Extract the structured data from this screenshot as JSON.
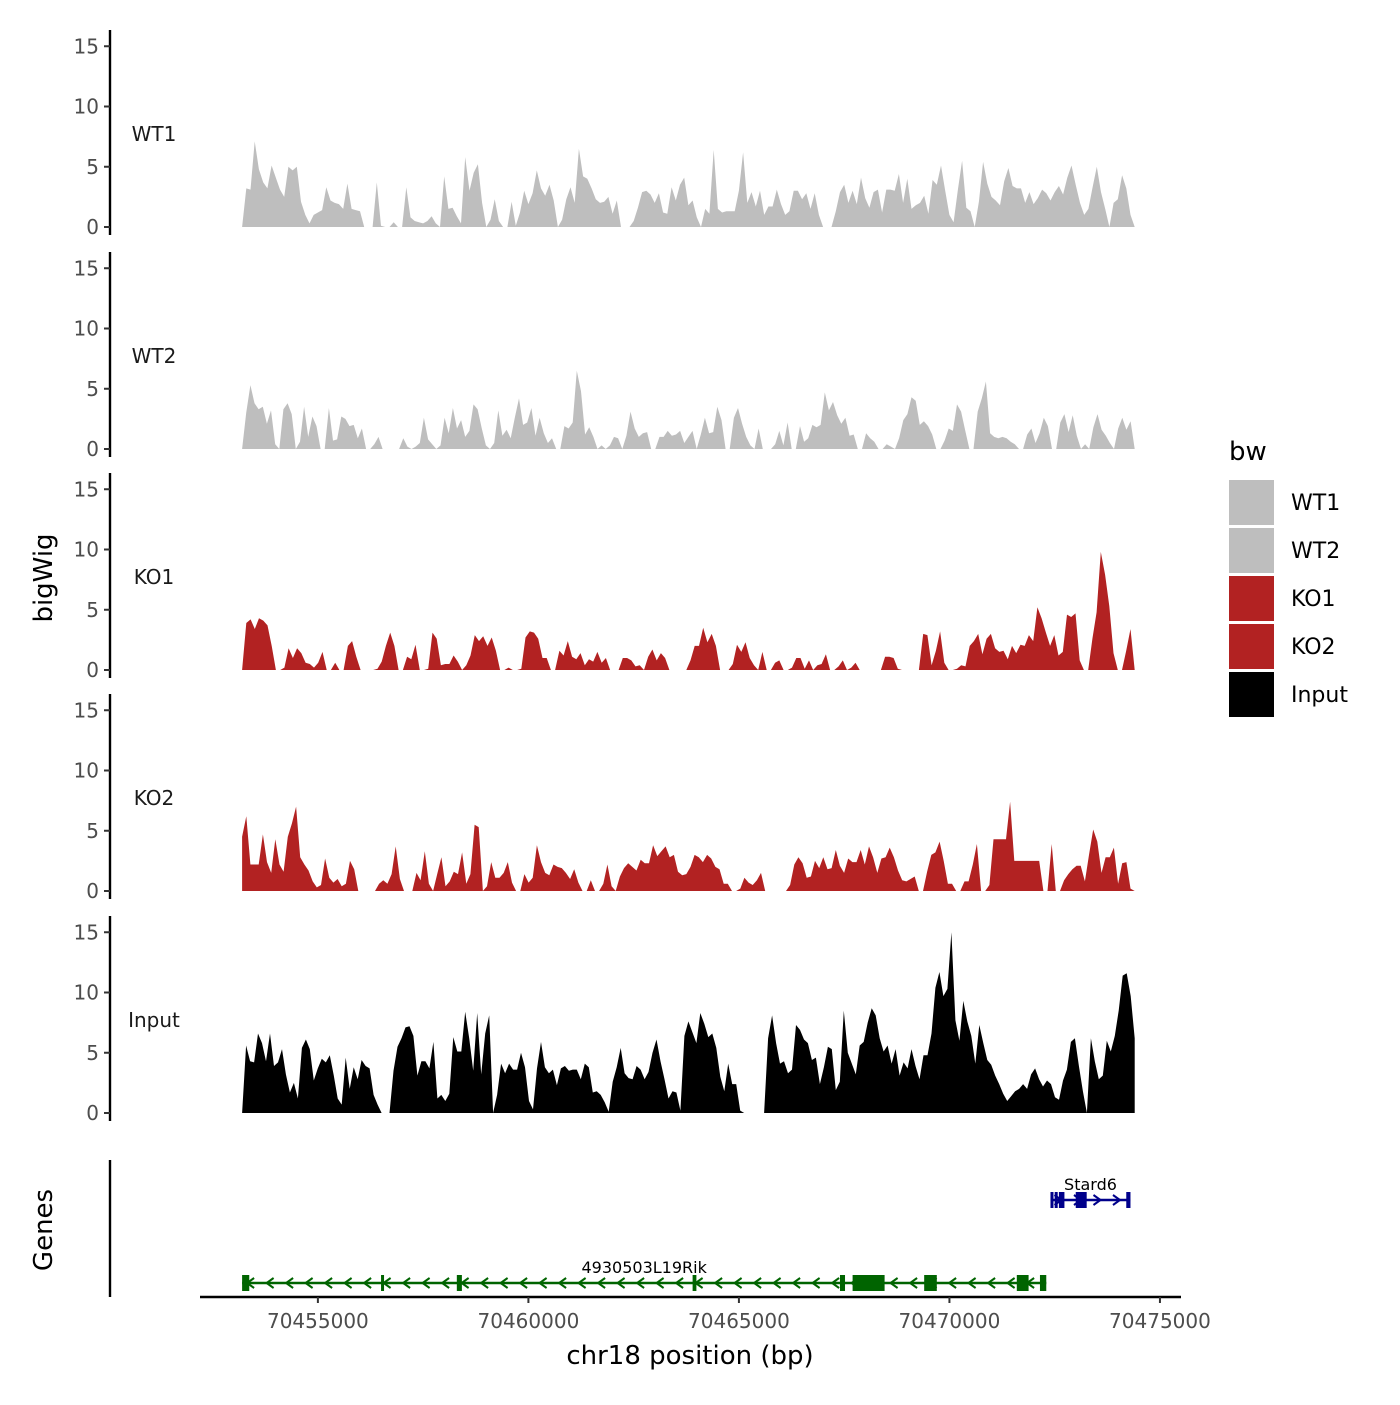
{
  "chart_data": {
    "type": "area",
    "chromosome": "chr18",
    "x_range": [
      70453200,
      70474400
    ],
    "xlim": [
      70452200,
      70475500
    ],
    "x_ticks": [
      70455000,
      70460000,
      70465000,
      70470000,
      70475000
    ],
    "x_tick_labels": [
      "70455000",
      "70460000",
      "70465000",
      "70470000",
      "70475000"
    ],
    "xlabel": "chr18 position (bp)",
    "ylabel": "bigWig",
    "genes_ylabel": "Genes",
    "y_ticks": [
      0,
      5,
      10,
      15
    ],
    "ylim": [
      0,
      16
    ],
    "legend_title": "bw",
    "series": [
      {
        "name": "WT1",
        "color": "#bebebe",
        "values": [
          0.0,
          3.2,
          3.1,
          7.1,
          4.8,
          3.7,
          3.2,
          5.1,
          4.1,
          3.1,
          2.5,
          5.0,
          4.7,
          5.0,
          2.1,
          1.0,
          0.3,
          1.0,
          1.2,
          1.4,
          3.3,
          2.2,
          2.0,
          1.9,
          1.5,
          3.6,
          1.5,
          1.4,
          1.3,
          0.0,
          0.0,
          0.0,
          3.7,
          0.1,
          0.0,
          0.0,
          0.4,
          0.0,
          0.0,
          3.3,
          0.8,
          0.5,
          0.4,
          0.3,
          0.5,
          0.9,
          0.3,
          0.0,
          4.2,
          1.5,
          1.6,
          0.9,
          0.3,
          5.8,
          3.0,
          4.5,
          5.2,
          2.0,
          0.0,
          0.6,
          2.3,
          0.5,
          0.0,
          0.0,
          2.1,
          0.1,
          1.2,
          3.0,
          1.9,
          2.8,
          4.7,
          3.2,
          2.6,
          3.5,
          2.2,
          0.0,
          0.6,
          2.3,
          3.3,
          2.0,
          6.5,
          4.2,
          4.0,
          3.2,
          2.3,
          2.0,
          2.1,
          2.5,
          1.1,
          2.2,
          0.0,
          0.0,
          0.0,
          0.5,
          1.6,
          2.9,
          3.0,
          2.7,
          2.0,
          2.8,
          1.2,
          1.1,
          3.3,
          2.2,
          3.5,
          4.1,
          1.8,
          2.2,
          0.8,
          0.0,
          1.5,
          1.1,
          6.4,
          1.5,
          1.2,
          1.3,
          1.3,
          1.3,
          3.0,
          6.2,
          2.0,
          2.9,
          1.7,
          3.0,
          1.0,
          1.7,
          1.7,
          3.1,
          1.9,
          1.0,
          1.3,
          3.0,
          3.0,
          2.3,
          2.8,
          1.5,
          2.8,
          1.0,
          0.0,
          0.0,
          0.0,
          1.3,
          2.9,
          3.5,
          2.0,
          3.0,
          1.9,
          4.1,
          2.4,
          1.6,
          2.9,
          3.1,
          1.2,
          3.1,
          3.1,
          3.0,
          4.4,
          2.0,
          4.0,
          1.5,
          1.8,
          2.0,
          2.6,
          1.1,
          3.9,
          3.5,
          5.1,
          3.0,
          1.0,
          0.4,
          3.1,
          5.5,
          1.6,
          1.3,
          0.0,
          2.1,
          5.4,
          3.6,
          2.5,
          2.2,
          1.8,
          3.8,
          4.9,
          3.4,
          3.2,
          3.2,
          2.0,
          2.9,
          1.9,
          2.4,
          3.1,
          2.8,
          2.2,
          2.9,
          3.4,
          2.7,
          4.1,
          5.1,
          3.5,
          2.0,
          1.0,
          1.5,
          3.3,
          5.0,
          2.9,
          1.5,
          0.0,
          2.0,
          2.3,
          4.3,
          3.2,
          1.0,
          0.0
        ]
      },
      {
        "name": "WT2",
        "color": "#bebebe",
        "values": [
          0.0,
          3.0,
          5.3,
          3.8,
          3.3,
          3.5,
          2.1,
          3.2,
          0.4,
          0.0,
          3.3,
          3.8,
          2.9,
          0.0,
          0.6,
          3.5,
          1.0,
          2.7,
          1.9,
          0.0,
          0.0,
          3.4,
          0.7,
          0.8,
          2.7,
          2.5,
          1.9,
          2.0,
          0.9,
          1.7,
          0.0,
          0.0,
          0.4,
          1.0,
          0.0,
          0.0,
          0.0,
          0.0,
          0.0,
          0.9,
          0.2,
          0.0,
          0.2,
          0.5,
          2.6,
          0.8,
          0.4,
          0.0,
          0.3,
          2.6,
          1.3,
          3.4,
          1.7,
          2.4,
          1.0,
          1.5,
          3.7,
          3.3,
          1.7,
          0.3,
          0.0,
          0.5,
          3.2,
          1.1,
          1.6,
          0.9,
          2.6,
          4.2,
          2.0,
          2.2,
          3.4,
          1.1,
          2.6,
          1.3,
          0.5,
          0.9,
          0.0,
          0.0,
          1.9,
          1.7,
          2.2,
          6.5,
          4.8,
          1.2,
          1.8,
          1.0,
          0.0,
          0.3,
          0.0,
          0.3,
          1.0,
          0.9,
          0.0,
          1.1,
          3.1,
          1.7,
          1.0,
          1.3,
          1.4,
          0.0,
          0.0,
          1.0,
          1.0,
          1.5,
          1.1,
          1.2,
          1.5,
          0.5,
          1.0,
          1.5,
          0.0,
          1.2,
          2.6,
          1.3,
          1.4,
          3.5,
          2.4,
          0.0,
          0.0,
          2.6,
          3.4,
          2.1,
          1.0,
          0.3,
          0.0,
          1.7,
          0.0,
          0.0,
          0.0,
          0.4,
          1.5,
          0.3,
          2.2,
          0.0,
          0.0,
          1.9,
          0.6,
          0.9,
          2.0,
          1.8,
          2.0,
          4.7,
          3.2,
          3.9,
          2.8,
          2.1,
          2.6,
          1.1,
          1.2,
          0.0,
          0.0,
          1.3,
          0.9,
          0.6,
          0.0,
          0.0,
          0.4,
          0.2,
          0.0,
          0.9,
          2.4,
          2.9,
          4.3,
          4.0,
          2.0,
          2.3,
          1.9,
          1.2,
          0.0,
          0.0,
          0.7,
          1.7,
          1.5,
          3.7,
          3.1,
          1.5,
          0.0,
          0.0,
          3.1,
          4.2,
          5.6,
          1.3,
          1.0,
          0.9,
          1.0,
          0.9,
          0.6,
          0.4,
          0.0,
          0.0,
          1.2,
          1.7,
          0.5,
          1.3,
          2.6,
          1.9,
          0.0,
          0.0,
          2.2,
          2.9,
          1.4,
          2.8,
          1.1,
          0.0,
          0.4,
          0.0,
          1.8,
          2.9,
          1.6,
          1.1,
          0.5,
          0.0,
          1.7,
          2.6,
          1.6,
          2.3,
          0.0
        ]
      },
      {
        "name": "KO1",
        "color": "#b22222",
        "values": [
          0.0,
          3.9,
          4.2,
          3.4,
          4.3,
          4.1,
          3.7,
          2.0,
          0.0,
          0.0,
          0.2,
          1.8,
          1.0,
          1.8,
          1.4,
          0.6,
          0.5,
          0.2,
          0.6,
          1.5,
          0.0,
          0.0,
          0.6,
          0.0,
          0.0,
          2.0,
          2.4,
          1.1,
          0.0,
          0.0,
          0.0,
          0.0,
          0.1,
          0.7,
          2.0,
          3.1,
          2.0,
          0.0,
          0.0,
          1.1,
          0.9,
          2.1,
          0.0,
          0.0,
          0.1,
          3.1,
          2.6,
          0.4,
          0.5,
          0.5,
          1.2,
          0.7,
          0.0,
          0.4,
          1.2,
          2.9,
          2.4,
          2.8,
          2.0,
          2.7,
          1.6,
          0.0,
          0.0,
          0.2,
          0.0,
          0.0,
          0.1,
          2.7,
          3.2,
          3.1,
          2.6,
          1.0,
          1.0,
          0.0,
          0.0,
          1.6,
          1.2,
          2.4,
          1.1,
          0.9,
          1.4,
          0.4,
          0.9,
          0.7,
          1.5,
          0.6,
          1.0,
          0.0,
          0.0,
          0.0,
          1.0,
          1.0,
          0.8,
          0.3,
          0.4,
          0.0,
          1.1,
          1.7,
          0.8,
          1.4,
          1.0,
          0.0,
          0.0,
          0.0,
          0.0,
          0.0,
          0.8,
          2.0,
          2.0,
          3.5,
          2.3,
          3.0,
          2.0,
          0.0,
          0.0,
          0.0,
          0.5,
          2.1,
          1.5,
          2.3,
          1.0,
          0.4,
          0.0,
          1.5,
          0.0,
          0.0,
          0.6,
          0.8,
          0.0,
          0.0,
          0.2,
          1.0,
          1.0,
          0.1,
          0.8,
          0.0,
          0.4,
          0.5,
          1.3,
          0.0,
          0.0,
          0.3,
          0.8,
          0.0,
          0.2,
          0.6,
          0.0,
          0.0,
          0.0,
          0.0,
          0.0,
          0.0,
          1.1,
          1.1,
          1.0,
          0.1,
          0.0,
          0.0,
          0.0,
          0.0,
          0.0,
          3.0,
          2.9,
          0.4,
          1.6,
          3.2,
          0.6,
          0.0,
          0.0,
          0.1,
          0.4,
          0.3,
          2.0,
          2.4,
          3.0,
          1.3,
          2.6,
          3.0,
          1.8,
          1.5,
          1.6,
          0.9,
          2.0,
          1.4,
          2.1,
          2.0,
          2.9,
          2.4,
          5.2,
          4.3,
          3.1,
          2.0,
          2.9,
          1.2,
          1.5,
          4.6,
          4.4,
          4.7,
          0.8,
          0.0,
          0.0,
          2.6,
          4.8,
          9.8,
          7.9,
          5.3,
          1.4,
          0.0,
          0.0,
          1.6,
          3.4,
          0.0
        ]
      },
      {
        "name": "KO2",
        "color": "#b22222",
        "values": [
          4.5,
          6.2,
          2.2,
          2.2,
          2.2,
          4.7,
          2.4,
          1.5,
          4.3,
          2.2,
          1.6,
          4.5,
          5.6,
          7.0,
          2.8,
          2.2,
          1.7,
          0.8,
          0.3,
          0.5,
          2.7,
          1.1,
          0.7,
          1.0,
          0.4,
          0.6,
          2.5,
          1.8,
          0.0,
          0.0,
          0.0,
          0.0,
          0.0,
          0.6,
          0.9,
          0.6,
          1.4,
          3.7,
          1.0,
          0.0,
          0.0,
          0.0,
          1.5,
          0.9,
          3.3,
          0.6,
          0.0,
          1.4,
          2.8,
          0.4,
          0.8,
          1.6,
          1.4,
          3.2,
          0.6,
          1.4,
          5.5,
          5.3,
          0.0,
          0.4,
          2.4,
          1.1,
          1.1,
          1.5,
          2.4,
          0.7,
          0.0,
          0.0,
          1.4,
          0.7,
          1.1,
          3.8,
          2.4,
          1.5,
          1.3,
          2.2,
          2.0,
          1.9,
          1.5,
          1.0,
          1.8,
          0.7,
          0.0,
          0.0,
          0.9,
          0.0,
          0.0,
          0.6,
          2.2,
          0.4,
          0.0,
          1.2,
          1.9,
          2.3,
          2.0,
          1.7,
          2.6,
          2.3,
          2.3,
          3.8,
          2.9,
          3.3,
          3.7,
          2.8,
          3.0,
          1.6,
          1.3,
          1.4,
          2.0,
          3.0,
          2.8,
          2.4,
          3.0,
          2.7,
          2.0,
          1.8,
          0.6,
          0.6,
          0.0,
          0.0,
          0.2,
          1.1,
          0.7,
          0.5,
          0.9,
          1.5,
          0.0,
          0.0,
          0.0,
          0.0,
          0.0,
          0.0,
          0.5,
          2.2,
          2.8,
          2.3,
          1.1,
          1.2,
          2.5,
          1.9,
          2.8,
          1.8,
          1.9,
          3.4,
          2.1,
          1.5,
          2.7,
          2.4,
          2.4,
          3.4,
          2.2,
          3.7,
          2.8,
          1.5,
          2.7,
          2.8,
          3.6,
          2.8,
          1.7,
          0.9,
          0.8,
          1.0,
          1.2,
          0.0,
          0.0,
          1.6,
          3.0,
          3.2,
          4.1,
          2.5,
          0.6,
          0.6,
          0.0,
          0.0,
          0.8,
          0.8,
          2.2,
          3.9,
          0.0,
          0.0,
          0.5,
          4.3,
          4.3,
          4.3,
          4.3,
          7.4,
          2.5,
          2.5,
          2.5,
          2.5,
          2.5,
          2.5,
          2.5,
          0.0,
          0.0,
          3.9,
          0.0,
          0.0,
          0.9,
          1.4,
          1.8,
          2.1,
          2.1,
          0.8,
          3.0,
          5.1,
          4.1,
          1.5,
          2.8,
          2.8,
          3.6,
          0.6,
          2.3,
          2.4,
          0.2,
          0.0
        ]
      },
      {
        "name": "Input",
        "color": "#000000",
        "values": [
          0.0,
          5.6,
          4.3,
          4.2,
          6.6,
          5.8,
          4.3,
          6.6,
          3.9,
          4.2,
          5.3,
          3.2,
          1.7,
          2.5,
          1.2,
          5.4,
          6.1,
          5.3,
          2.7,
          3.7,
          4.5,
          4.2,
          4.8,
          3.1,
          1.2,
          0.7,
          4.6,
          2.0,
          3.8,
          2.8,
          4.4,
          3.9,
          3.7,
          1.5,
          0.7,
          0.0,
          0.0,
          0.0,
          3.5,
          5.5,
          6.2,
          7.1,
          7.2,
          6.4,
          3.1,
          4.3,
          4.3,
          3.7,
          5.9,
          1.2,
          1.5,
          1.0,
          1.6,
          6.3,
          5.1,
          5.1,
          8.4,
          6.2,
          3.5,
          8.3,
          3.2,
          6.6,
          8.1,
          0.0,
          1.5,
          4.1,
          3.3,
          4.1,
          3.6,
          3.6,
          5.0,
          3.8,
          1.0,
          0.3,
          3.7,
          5.9,
          3.8,
          3.3,
          3.6,
          2.3,
          3.7,
          3.9,
          3.5,
          3.6,
          3.6,
          2.8,
          4.1,
          3.8,
          1.7,
          1.8,
          1.5,
          0.9,
          0.1,
          2.6,
          3.8,
          5.4,
          3.3,
          2.9,
          2.8,
          3.9,
          3.6,
          2.8,
          3.4,
          5.0,
          6.1,
          4.3,
          2.8,
          1.2,
          1.8,
          1.7,
          0.2,
          6.4,
          7.6,
          6.7,
          5.8,
          8.3,
          7.4,
          6.3,
          6.6,
          5.4,
          3.0,
          1.8,
          4.1,
          2.4,
          2.4,
          0.2,
          0.0,
          0.0,
          0.0,
          0.0,
          0.0,
          0.0,
          6.2,
          8.1,
          5.8,
          4.1,
          4.3,
          3.3,
          3.6,
          7.3,
          6.9,
          6.1,
          5.8,
          4.4,
          4.6,
          2.4,
          3.8,
          5.5,
          5.3,
          1.9,
          2.6,
          8.5,
          5.0,
          4.1,
          3.2,
          5.6,
          5.9,
          7.5,
          8.7,
          8.1,
          6.2,
          5.1,
          5.6,
          4.1,
          5.3,
          3.1,
          4.2,
          3.7,
          5.3,
          3.9,
          2.8,
          4.8,
          4.8,
          6.6,
          10.4,
          11.7,
          9.7,
          10.3,
          15.0,
          7.7,
          6.0,
          9.3,
          7.6,
          6.4,
          4.1,
          7.3,
          5.8,
          4.4,
          4.0,
          3.1,
          2.4,
          1.6,
          1.0,
          1.4,
          1.8,
          2.0,
          2.4,
          2.0,
          3.2,
          3.7,
          2.8,
          2.2,
          2.7,
          2.4,
          1.3,
          1.1,
          2.7,
          3.6,
          5.9,
          6.2,
          3.9,
          1.8,
          0.0,
          6.2,
          4.3,
          2.8,
          3.1,
          6.0,
          5.1,
          6.4,
          8.5,
          11.4,
          11.6,
          9.7,
          6.2
        ]
      }
    ],
    "genes": [
      {
        "name": "Stard6",
        "strand": "+",
        "color": "#00008b",
        "start": 70472400,
        "end": 70474300,
        "exons": [
          [
            70472400,
            70472450
          ],
          [
            70472500,
            70472540
          ],
          [
            70472600,
            70472640
          ],
          [
            70472660,
            70472690
          ],
          [
            70473000,
            70473260
          ],
          [
            70474200,
            70474300
          ]
        ]
      },
      {
        "name": "4930503L19Rik",
        "strand": "-",
        "color": "#006400",
        "start": 70453200,
        "end": 70472300,
        "exons": [
          [
            70453200,
            70453370
          ],
          [
            70456500,
            70456560
          ],
          [
            70458300,
            70458420
          ],
          [
            70463900,
            70463990
          ],
          [
            70467400,
            70467520
          ],
          [
            70467700,
            70468460
          ],
          [
            70469400,
            70469700
          ],
          [
            70471600,
            70471880
          ],
          [
            70472150,
            70472300
          ]
        ]
      }
    ]
  }
}
